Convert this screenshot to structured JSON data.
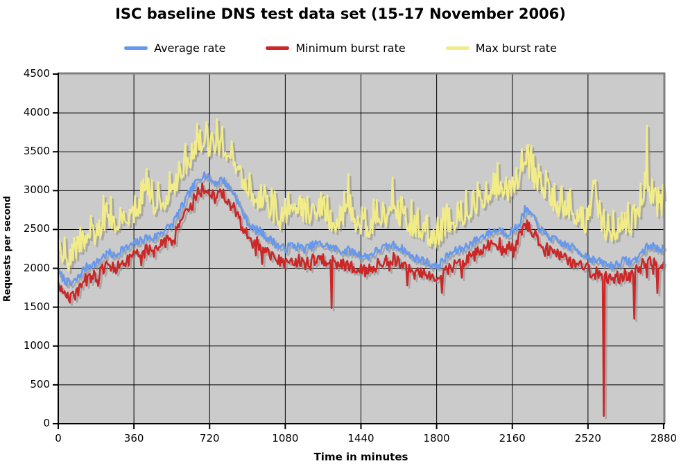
{
  "title": "ISC baseline DNS test data set (15-17 November 2006)",
  "chart_data": {
    "type": "line",
    "title": "ISC baseline DNS test data set (15-17 November 2006)",
    "xlabel": "Time in minutes",
    "ylabel": "Requests per second",
    "xlim": [
      0,
      2880
    ],
    "ylim": [
      0,
      4500
    ],
    "x_ticks": [
      0,
      360,
      720,
      1080,
      1440,
      1800,
      2160,
      2520,
      2880
    ],
    "y_ticks": [
      0,
      500,
      1000,
      1500,
      2000,
      2500,
      3000,
      3500,
      4000,
      4500
    ],
    "grid": true,
    "legend_position": "top-center",
    "plot_bg_color": "#cbcbcb",
    "grid_color": "#000000",
    "outer_border_color": "#808080",
    "shadow_color": "#8a8a8a",
    "x_step": 30,
    "series": [
      {
        "name": "Average rate",
        "color": "#6699ee",
        "kind": "mid",
        "noise": 55,
        "values": [
          1950,
          1850,
          1790,
          1860,
          1980,
          2050,
          2060,
          2150,
          2200,
          2150,
          2250,
          2260,
          2320,
          2350,
          2400,
          2380,
          2450,
          2500,
          2560,
          2700,
          2850,
          3000,
          3120,
          3220,
          3150,
          3100,
          3150,
          3050,
          2950,
          2750,
          2600,
          2500,
          2480,
          2400,
          2350,
          2280,
          2250,
          2300,
          2280,
          2250,
          2280,
          2320,
          2300,
          2280,
          2250,
          2220,
          2230,
          2200,
          2170,
          2150,
          2200,
          2250,
          2270,
          2300,
          2280,
          2220,
          2150,
          2120,
          2100,
          2050,
          2020,
          2100,
          2180,
          2220,
          2250,
          2300,
          2350,
          2400,
          2450,
          2480,
          2500,
          2450,
          2480,
          2550,
          2750,
          2700,
          2550,
          2450,
          2400,
          2350,
          2320,
          2280,
          2250,
          2200,
          2150,
          2100,
          2080,
          2050,
          2030,
          2080,
          2100,
          2080,
          2150,
          2250,
          2300,
          2250,
          2260
        ]
      },
      {
        "name": "Minimum burst rate",
        "color": "#cc2626",
        "kind": "min",
        "noise": 85,
        "values": [
          1800,
          1680,
          1620,
          1700,
          1820,
          1890,
          1900,
          1990,
          2030,
          1980,
          2080,
          2090,
          2150,
          2180,
          2230,
          2200,
          2280,
          2330,
          2390,
          2530,
          2680,
          2830,
          2950,
          3030,
          2960,
          2900,
          2960,
          2860,
          2760,
          2560,
          2420,
          2330,
          2300,
          2220,
          2170,
          2090,
          2060,
          2120,
          2100,
          2060,
          2100,
          2140,
          2120,
          2100,
          2070,
          2040,
          2050,
          2020,
          1990,
          1970,
          2020,
          2070,
          2090,
          2120,
          2100,
          2040,
          1970,
          1940,
          1920,
          1870,
          1850,
          1930,
          2000,
          2040,
          2070,
          2120,
          2170,
          2220,
          2270,
          2300,
          2320,
          2270,
          2300,
          2370,
          2570,
          2520,
          2370,
          2270,
          2220,
          2170,
          2140,
          2100,
          2070,
          2020,
          1980,
          1940,
          1920,
          1890,
          1870,
          1910,
          1930,
          1910,
          1980,
          2080,
          2120,
          1980,
          2080
        ],
        "outliers": [
          {
            "t": 1300,
            "v": 1490
          },
          {
            "t": 2595,
            "v": 100
          },
          {
            "t": 2740,
            "v": 1350
          },
          {
            "t": 2850,
            "v": 1680
          }
        ]
      },
      {
        "name": "Max burst rate",
        "color": "#f2ec88",
        "kind": "max",
        "noise": 150,
        "values": [
          2250,
          2150,
          2100,
          2200,
          2350,
          2500,
          2450,
          2600,
          2700,
          2550,
          2700,
          2650,
          2750,
          2800,
          3150,
          2750,
          2850,
          2900,
          3000,
          3100,
          3250,
          3450,
          3550,
          3650,
          3550,
          3600,
          3600,
          3500,
          3400,
          3200,
          3050,
          2950,
          2900,
          2850,
          2750,
          2650,
          2700,
          2900,
          2750,
          2650,
          2700,
          2750,
          2700,
          2650,
          2600,
          2620,
          2900,
          2600,
          2550,
          2520,
          2600,
          2650,
          2700,
          2900,
          2700,
          2620,
          2550,
          2500,
          2480,
          2420,
          2400,
          2500,
          2600,
          2650,
          2700,
          2750,
          2800,
          2900,
          2950,
          3000,
          3050,
          2950,
          3000,
          3100,
          3350,
          3250,
          3100,
          2950,
          2900,
          2820,
          2780,
          2720,
          2680,
          2620,
          2580,
          3120,
          2550,
          2500,
          2480,
          2550,
          2600,
          2580,
          2700,
          2950,
          2950,
          2700,
          2900
        ],
        "outliers": [
          {
            "t": 755,
            "v": 3920
          },
          {
            "t": 2800,
            "v": 3840
          }
        ]
      }
    ]
  }
}
